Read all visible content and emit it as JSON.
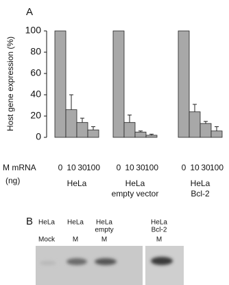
{
  "chart_data": {
    "type": "bar",
    "panel_label": "A",
    "y_label": "Host gene expression (%)",
    "x_label_lines": [
      "M mRNA",
      "(ng)"
    ],
    "groups": [
      {
        "name_lines": [
          "HeLa"
        ],
        "categories": [
          "0",
          "10",
          "30",
          "100"
        ],
        "values": [
          100,
          26,
          14,
          7
        ],
        "errors": [
          null,
          14,
          4,
          3
        ]
      },
      {
        "name_lines": [
          "HeLa",
          "empty vector"
        ],
        "categories": [
          "0",
          "10",
          "30",
          "100"
        ],
        "values": [
          100,
          14,
          5,
          2
        ],
        "errors": [
          null,
          7,
          1,
          1
        ]
      },
      {
        "name_lines": [
          "HeLa",
          "Bcl-2"
        ],
        "categories": [
          "0",
          "10",
          "30",
          "100"
        ],
        "values": [
          100,
          24,
          13,
          6
        ],
        "errors": [
          null,
          7,
          2,
          4
        ]
      }
    ],
    "color": "#a8a8a8",
    "ylim": [
      0,
      100
    ],
    "yticks": [
      0,
      20,
      40,
      60,
      80,
      100
    ]
  },
  "panel_b": {
    "label": "B",
    "lanes": [
      {
        "lines": [
          "HeLa"
        ],
        "treatment": "Mock"
      },
      {
        "lines": [
          "HeLa"
        ],
        "treatment": "M"
      },
      {
        "lines": [
          "HeLa",
          "empty"
        ],
        "treatment": "M"
      },
      {
        "lines": [
          "HeLa",
          "Bcl-2"
        ],
        "treatment": "M"
      }
    ]
  }
}
